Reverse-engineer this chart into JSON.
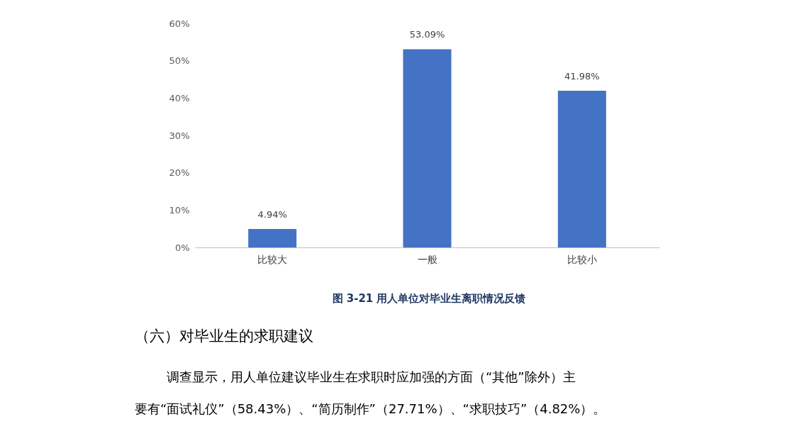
{
  "chart_data": {
    "type": "bar",
    "title": "图 3-21   用人单位对毕业生离职情况反馈",
    "categories": [
      "比较大",
      "一般",
      "比较小"
    ],
    "series": [
      {
        "color": "#4472c4",
        "values": [
          4.94,
          53.09,
          41.98
        ],
        "value_labels": [
          "4.94%",
          "53.09%",
          "41.98%"
        ]
      }
    ],
    "ylim": [
      0,
      60
    ],
    "yticks": [
      {
        "value": 0,
        "label": "0%"
      },
      {
        "value": 10,
        "label": "10%"
      },
      {
        "value": 20,
        "label": "20%"
      },
      {
        "value": 30,
        "label": "30%"
      },
      {
        "value": 40,
        "label": "40%"
      },
      {
        "value": 50,
        "label": "50%"
      },
      {
        "value": 60,
        "label": "60%"
      }
    ],
    "grid": false,
    "annotations": [
      "（六）对毕业生的求职建议",
      "调查显示，用人单位建议毕业生在求职时应加强的方面（“其他”除外）主",
      "要有“面试礼仪”（58.43%）、“简历制作”（27.71%）、“求职技巧”（4.82%）。"
    ]
  }
}
